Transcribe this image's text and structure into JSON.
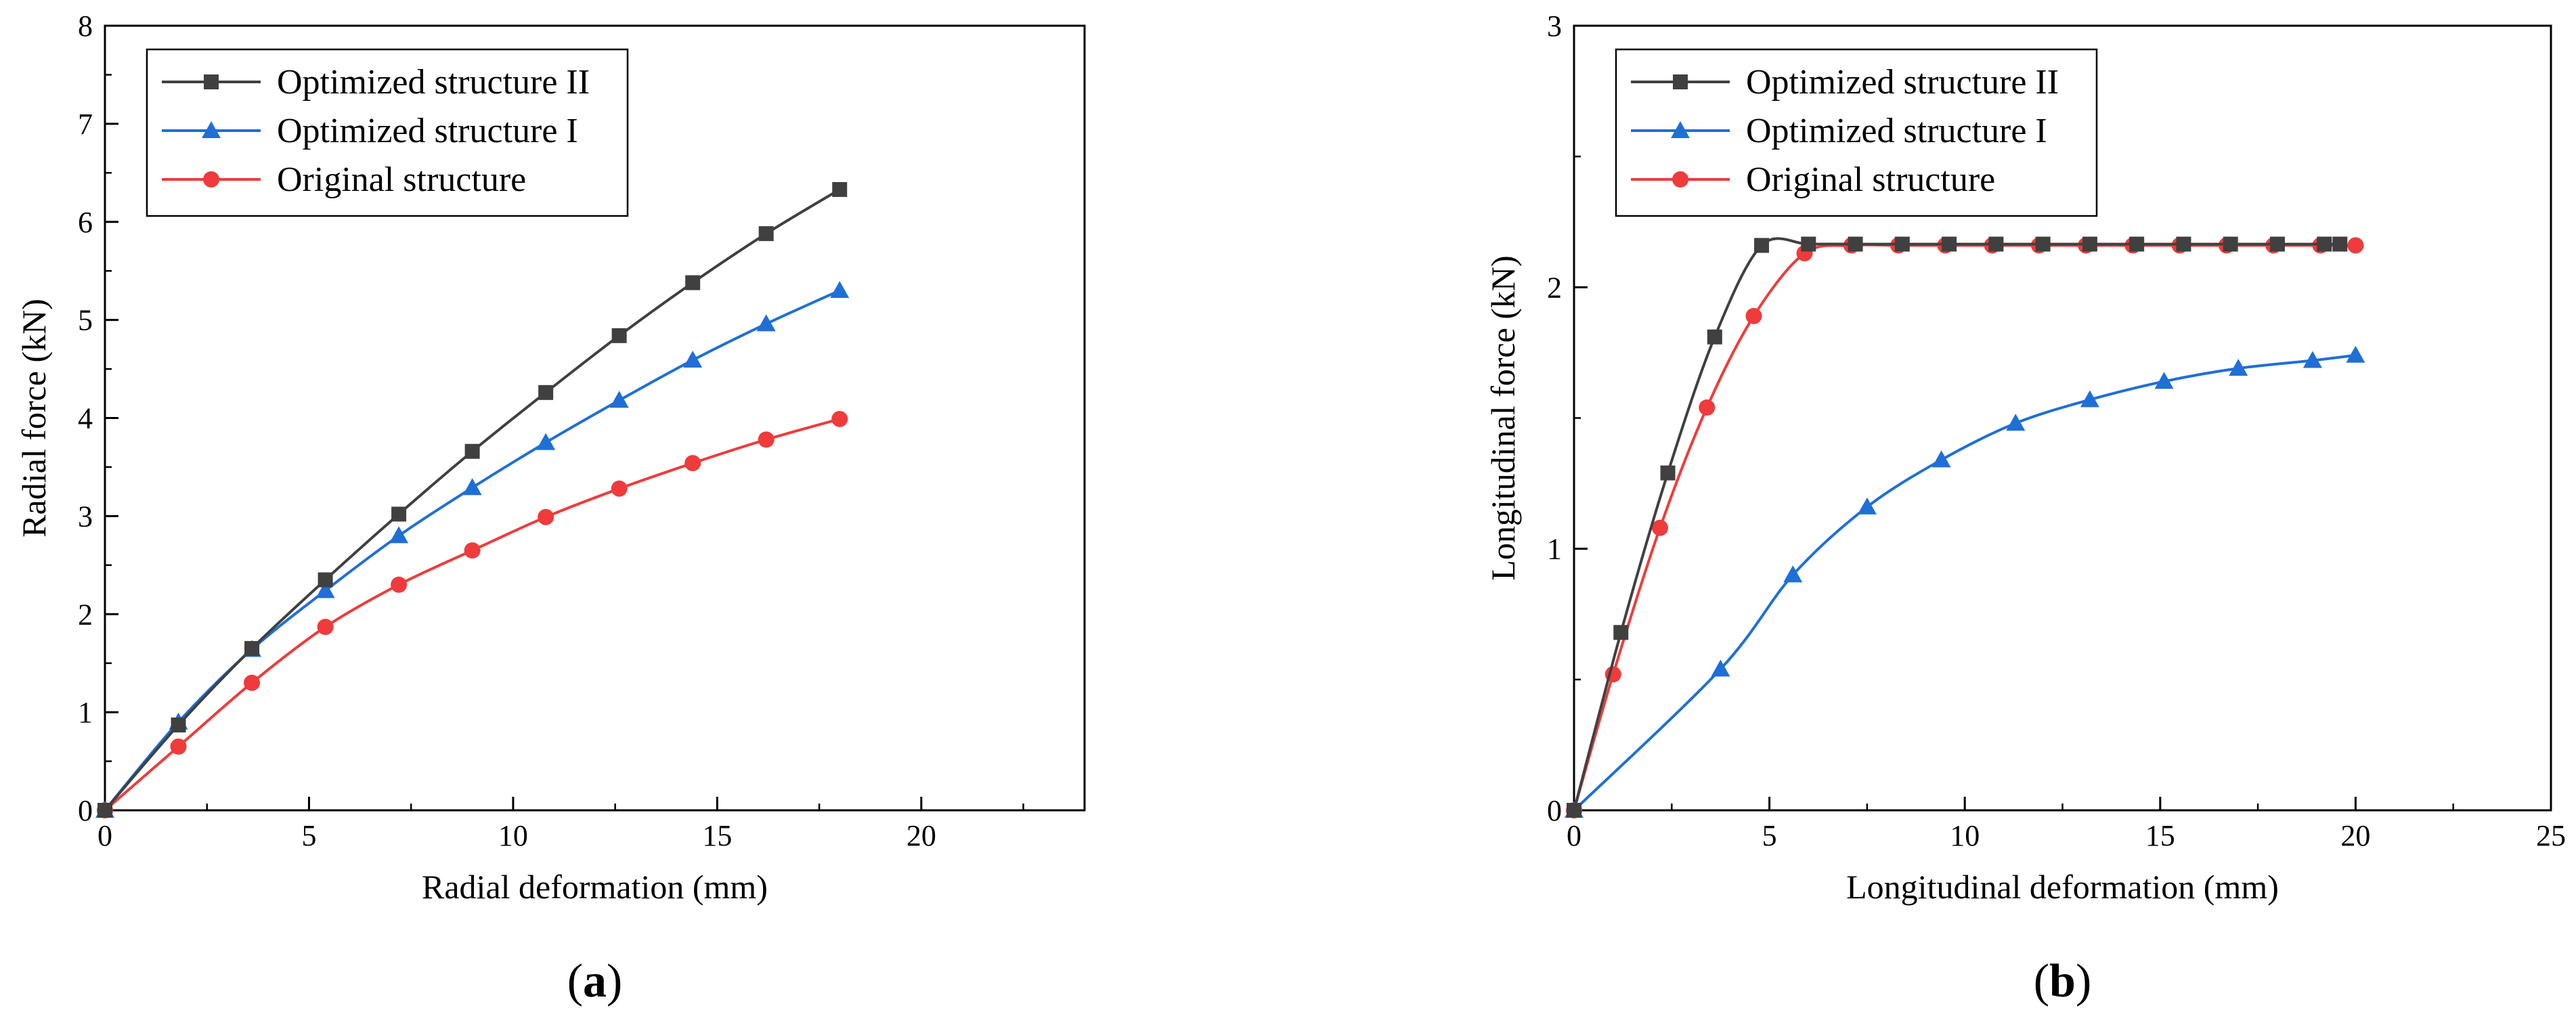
{
  "chart_data": [
    {
      "type": "line",
      "panel_label": "(a)",
      "panel_letter": "a",
      "xlabel": "Radial deformation (mm)",
      "ylabel": "Radial force (kN)",
      "xlim": [
        0,
        24
      ],
      "ylim": [
        0,
        8
      ],
      "xticks": [
        0,
        5,
        10,
        15,
        20
      ],
      "yticks": [
        0,
        1,
        2,
        3,
        4,
        5,
        6,
        7,
        8
      ],
      "x_minor_step": 2.5,
      "y_minor_step": 0.5,
      "legend_position": "top-left",
      "series": [
        {
          "name": "Optimized structure II",
          "color": "#404040",
          "marker": "square",
          "x": [
            0,
            1.8,
            3.6,
            5.4,
            7.2,
            9.0,
            10.8,
            12.6,
            14.4,
            16.2,
            18.0
          ],
          "y": [
            0,
            0.87,
            1.65,
            2.35,
            3.02,
            3.66,
            4.26,
            4.84,
            5.38,
            5.88,
            6.33
          ]
        },
        {
          "name": "Optimized structure I",
          "color": "#1f6fd6",
          "marker": "triangle",
          "x": [
            0,
            1.8,
            3.6,
            5.4,
            7.2,
            9.0,
            10.8,
            12.6,
            14.4,
            16.2,
            18.0
          ],
          "y": [
            0,
            0.9,
            1.64,
            2.24,
            2.8,
            3.29,
            3.75,
            4.18,
            4.59,
            4.96,
            5.3
          ]
        },
        {
          "name": "Original structure",
          "color": "#ef3b3b",
          "marker": "circle",
          "x": [
            0,
            1.8,
            3.6,
            5.4,
            7.2,
            9.0,
            10.8,
            12.6,
            14.4,
            16.2,
            18.0
          ],
          "y": [
            0,
            0.65,
            1.3,
            1.87,
            2.3,
            2.65,
            2.99,
            3.28,
            3.54,
            3.78,
            3.99
          ]
        }
      ]
    },
    {
      "type": "line",
      "panel_label": "(b)",
      "panel_letter": "b",
      "xlabel": "Longitudinal deformation (mm)",
      "ylabel": "Longitudinal force (kN)",
      "xlim": [
        0,
        25
      ],
      "ylim": [
        0,
        3
      ],
      "xticks": [
        0,
        5,
        10,
        15,
        20,
        25
      ],
      "yticks": [
        0,
        1,
        2,
        3
      ],
      "x_minor_step": 2.5,
      "y_minor_step": 0.5,
      "legend_position": "top-left",
      "series": [
        {
          "name": "Optimized structure II",
          "color": "#404040",
          "marker": "square",
          "x": [
            0,
            1.2,
            2.4,
            3.6,
            4.8,
            6.0,
            7.2,
            8.4,
            9.6,
            10.8,
            12.0,
            13.2,
            14.4,
            15.6,
            16.8,
            18.0,
            19.2,
            19.6
          ],
          "y": [
            0,
            0.68,
            1.29,
            1.81,
            2.16,
            2.165,
            2.165,
            2.165,
            2.165,
            2.165,
            2.165,
            2.165,
            2.165,
            2.165,
            2.165,
            2.165,
            2.165,
            2.165
          ]
        },
        {
          "name": "Optimized structure I",
          "color": "#1f6fd6",
          "marker": "triangle",
          "x": [
            0,
            3.75,
            5.6,
            7.5,
            9.4,
            11.3,
            13.2,
            15.1,
            17.0,
            18.9,
            20.0
          ],
          "y": [
            0,
            0.54,
            0.9,
            1.16,
            1.34,
            1.48,
            1.57,
            1.64,
            1.69,
            1.72,
            1.74
          ]
        },
        {
          "name": "Original structure",
          "color": "#ef3b3b",
          "marker": "circle",
          "x": [
            0,
            1.0,
            2.2,
            3.4,
            4.6,
            5.9,
            7.1,
            8.3,
            9.5,
            10.7,
            11.9,
            13.1,
            14.3,
            15.5,
            16.7,
            17.9,
            19.1,
            20.0
          ],
          "y": [
            0,
            0.52,
            1.08,
            1.54,
            1.89,
            2.13,
            2.16,
            2.16,
            2.16,
            2.16,
            2.16,
            2.16,
            2.16,
            2.16,
            2.16,
            2.16,
            2.16,
            2.16
          ]
        }
      ]
    }
  ]
}
